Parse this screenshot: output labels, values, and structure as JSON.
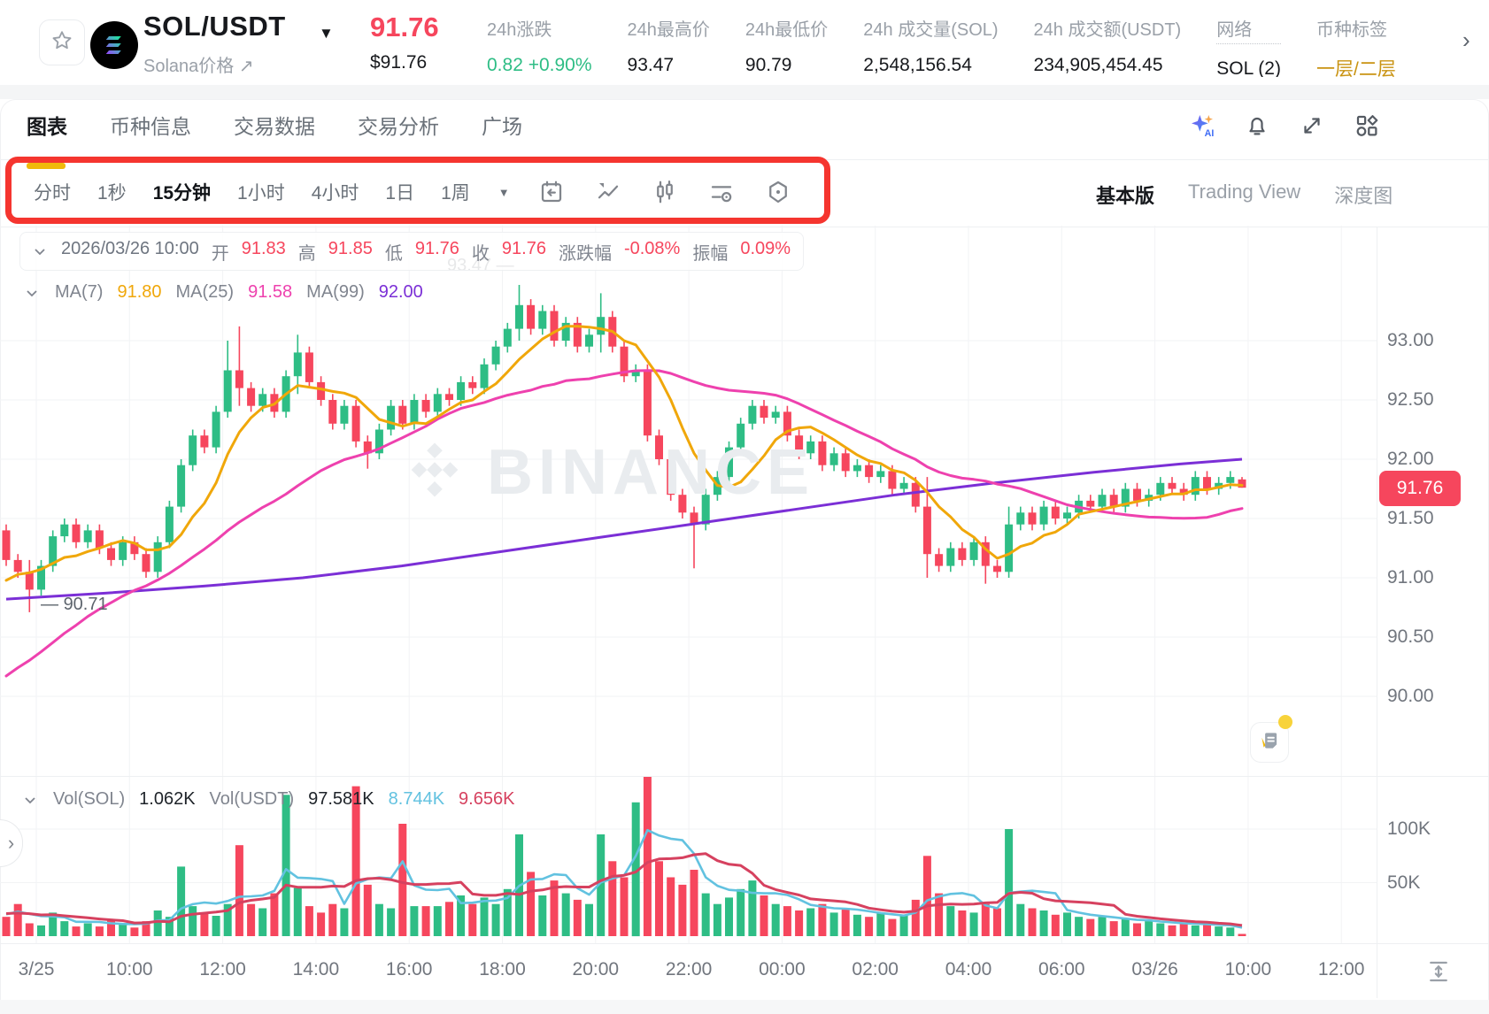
{
  "header": {
    "pair": "SOL/USDT",
    "caret": "▼",
    "subtitle": "Solana价格",
    "subtitle_arrow": "↗",
    "price": "91.76",
    "price_usd": "$91.76",
    "stats": [
      {
        "label": "24h涨跌",
        "value": "0.82 +0.90%",
        "color": "#2EBD85"
      },
      {
        "label": "24h最高价",
        "value": "93.47",
        "color": "#17191d"
      },
      {
        "label": "24h最低价",
        "value": "90.79",
        "color": "#17191d"
      },
      {
        "label": "24h 成交量(SOL)",
        "value": "2,548,156.54",
        "color": "#17191d"
      },
      {
        "label": "24h 成交额(USDT)",
        "value": "234,905,454.45",
        "color": "#17191d"
      },
      {
        "label": "网络",
        "value": "SOL (2)",
        "color": "#17191d",
        "dotted": true
      },
      {
        "label": "币种标签",
        "value": "一层/二层",
        "color": "#c99312"
      }
    ],
    "more_chevron": "›"
  },
  "tabs": {
    "items": [
      "图表",
      "币种信息",
      "交易数据",
      "交易分析",
      "广场"
    ],
    "active_index": 0,
    "action_icons": [
      "ai-icon",
      "bell-icon",
      "fullscreen-icon",
      "layout-icon"
    ]
  },
  "toolbar": {
    "timeframes": [
      "分时",
      "1秒",
      "15分钟",
      "1小时",
      "4小时",
      "1日",
      "1周"
    ],
    "active_index": 2,
    "caret": "▼",
    "icons": [
      "replay-icon",
      "chart-style-icon",
      "candlestick-icon",
      "indicator-icon",
      "settings-hex-icon"
    ],
    "view_modes": [
      "基本版",
      "Trading View",
      "深度图"
    ],
    "view_active_index": 0
  },
  "colors": {
    "up": "#2EBD85",
    "down": "#F6465D",
    "label": "#80858F",
    "muted": "#6E7580",
    "dark": "#1E2329",
    "ma7": "#F0A70A",
    "ma25": "#EE41AE",
    "ma99": "#7B2FD6",
    "volma5": "#62C2E0",
    "volma10": "#D6415F",
    "annotation": "#F5352F",
    "tab_underline": "#F0B90B"
  },
  "readouts": {
    "ohlc": [
      [
        "2026/03/26 10:00",
        "muted"
      ],
      [
        "开",
        "label"
      ],
      [
        "91.83",
        "down"
      ],
      [
        "高",
        "label"
      ],
      [
        "91.85",
        "down"
      ],
      [
        "低",
        "label"
      ],
      [
        "91.76",
        "down"
      ],
      [
        "收",
        "label"
      ],
      [
        "91.76",
        "down"
      ],
      [
        "涨跌幅",
        "label"
      ],
      [
        "-0.08%",
        "down"
      ],
      [
        "振幅",
        "label"
      ],
      [
        "0.09%",
        "down"
      ]
    ],
    "ma": [
      [
        "MA(7)",
        "label"
      ],
      [
        "91.80",
        "ma7"
      ],
      [
        "MA(25)",
        "label"
      ],
      [
        "91.58",
        "ma25"
      ],
      [
        "MA(99)",
        "label"
      ],
      [
        "92.00",
        "ma99"
      ]
    ],
    "vol": [
      [
        "Vol(SOL)",
        "label"
      ],
      [
        "1.062K",
        "dark"
      ],
      [
        "Vol(USDT)",
        "label"
      ],
      [
        "97.581K",
        "dark"
      ],
      [
        "8.744K",
        "volma5"
      ],
      [
        "9.656K",
        "volma10"
      ]
    ]
  },
  "watermark": {
    "text": "BINANCE"
  },
  "chart_data": {
    "type": "candlestick-with-volume",
    "interval": "15m",
    "badge": "91.76",
    "high_marker": "93.47",
    "low_marker": "90.71",
    "price_ticks": [
      93.0,
      92.5,
      92.0,
      91.5,
      91.0,
      90.5,
      90.0
    ],
    "vol_ticks": [
      {
        "label": "100K",
        "v": 100
      },
      {
        "label": "50K",
        "v": 50
      }
    ],
    "time_ticks": [
      "3/25",
      "10:00",
      "12:00",
      "14:00",
      "16:00",
      "18:00",
      "20:00",
      "22:00",
      "00:00",
      "02:00",
      "04:00",
      "06:00",
      "03/26",
      "10:00",
      "12:00"
    ],
    "candles": {
      "open_first": 91.4,
      "wick_default": 0.05,
      "closes": [
        91.15,
        91.05,
        90.9,
        91.1,
        91.35,
        91.45,
        91.3,
        91.4,
        91.25,
        91.15,
        91.3,
        91.2,
        91.05,
        91.3,
        91.6,
        91.95,
        92.2,
        92.1,
        92.4,
        92.75,
        92.6,
        92.45,
        92.55,
        92.4,
        92.7,
        92.9,
        92.65,
        92.5,
        92.3,
        92.45,
        92.15,
        92.05,
        92.25,
        92.45,
        92.3,
        92.5,
        92.4,
        92.55,
        92.5,
        92.65,
        92.6,
        92.8,
        92.95,
        93.1,
        93.3,
        93.1,
        93.25,
        93.0,
        93.15,
        92.95,
        93.05,
        93.2,
        92.95,
        92.7,
        92.75,
        92.2,
        92.0,
        91.7,
        91.55,
        91.45,
        91.7,
        91.85,
        92.1,
        92.3,
        92.45,
        92.35,
        92.4,
        92.2,
        92.05,
        92.15,
        91.95,
        92.05,
        91.9,
        91.95,
        91.85,
        91.9,
        91.75,
        91.8,
        91.6,
        91.2,
        91.1,
        91.25,
        91.15,
        91.3,
        91.1,
        91.05,
        91.45,
        91.55,
        91.45,
        91.6,
        91.5,
        91.55,
        91.65,
        91.6,
        91.7,
        91.6,
        91.75,
        91.65,
        91.7,
        91.8,
        91.75,
        91.7,
        91.85,
        91.75,
        91.8,
        91.85,
        91.76
      ],
      "wick_overrides": {
        "2": [
          91.15,
          90.71
        ],
        "19": [
          93.0,
          92.35
        ],
        "20": [
          93.12,
          92.45
        ],
        "25": [
          93.05,
          92.55
        ],
        "31": [
          92.2,
          91.92
        ],
        "44": [
          93.47,
          93.0
        ],
        "51": [
          93.4,
          92.9
        ],
        "59": [
          91.6,
          91.08
        ],
        "79": [
          91.85,
          91.0
        ],
        "84": [
          91.35,
          90.95
        ],
        "86": [
          91.6,
          91.0
        ]
      },
      "last_ohlc": [
        91.83,
        91.85,
        91.76,
        91.76
      ],
      "pre_closes": [
        89.2,
        89.3,
        89.35,
        89.3,
        89.4,
        89.5,
        89.6,
        89.55,
        89.7,
        89.8,
        89.9,
        90.0,
        90.1,
        90.05,
        90.2,
        90.3,
        90.45,
        90.4,
        90.55,
        90.7,
        90.8,
        90.9,
        91.0,
        91.1,
        91.2
      ]
    },
    "volumes_k": [
      18,
      30,
      12,
      10,
      22,
      14,
      9,
      12,
      9,
      16,
      11,
      8,
      14,
      24,
      18,
      65,
      28,
      22,
      19,
      30,
      85,
      30,
      26,
      40,
      132,
      45,
      28,
      22,
      30,
      26,
      140,
      48,
      30,
      26,
      105,
      28,
      28,
      28,
      32,
      38,
      30,
      36,
      30,
      44,
      95,
      60,
      38,
      52,
      40,
      34,
      30,
      95,
      70,
      55,
      125,
      150,
      70,
      55,
      48,
      62,
      40,
      30,
      36,
      44,
      52,
      38,
      30,
      28,
      24,
      26,
      30,
      22,
      26,
      20,
      18,
      22,
      16,
      20,
      34,
      75,
      40,
      28,
      24,
      22,
      30,
      26,
      100,
      30,
      26,
      24,
      20,
      22,
      18,
      16,
      18,
      14,
      16,
      12,
      14,
      12,
      10,
      12,
      10,
      12,
      9,
      8,
      1.062
    ],
    "pre_volumes_k": [
      20,
      25,
      18,
      22,
      20,
      24,
      18,
      22,
      20,
      24
    ],
    "ma99_path": [
      [
        0,
        90.82
      ],
      [
        0.08,
        90.87
      ],
      [
        0.16,
        90.93
      ],
      [
        0.24,
        91.0
      ],
      [
        0.32,
        91.1
      ],
      [
        0.4,
        91.22
      ],
      [
        0.48,
        91.34
      ],
      [
        0.56,
        91.46
      ],
      [
        0.64,
        91.58
      ],
      [
        0.72,
        91.7
      ],
      [
        0.8,
        91.8
      ],
      [
        0.88,
        91.89
      ],
      [
        0.95,
        91.96
      ],
      [
        1.0,
        92.0
      ]
    ]
  },
  "annotation": {
    "type": "highlight-box",
    "target": "timeframe-toolbar"
  }
}
